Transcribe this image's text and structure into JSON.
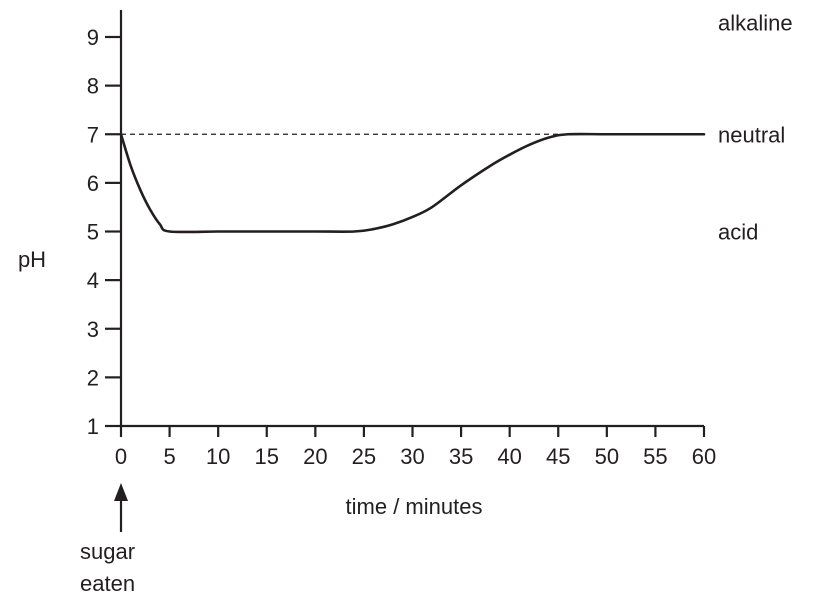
{
  "chart_data": {
    "type": "line",
    "title": "",
    "xlabel": "time / minutes",
    "ylabel": "pH",
    "xlim": [
      0,
      60
    ],
    "ylim": [
      1,
      9
    ],
    "x_ticks": [
      0,
      5,
      10,
      15,
      20,
      25,
      30,
      35,
      40,
      45,
      50,
      55,
      60
    ],
    "y_ticks": [
      1,
      2,
      3,
      4,
      5,
      6,
      7,
      8,
      9
    ],
    "grid": false,
    "series": [
      {
        "x": [
          0,
          1,
          2,
          3,
          4,
          5,
          10,
          15,
          20,
          24,
          26,
          28,
          30,
          32,
          35,
          38,
          40,
          42,
          44,
          46,
          50,
          55,
          60
        ],
        "y": [
          7,
          6.35,
          5.85,
          5.45,
          5.15,
          5.0,
          5.0,
          5.0,
          5.0,
          5.0,
          5.05,
          5.15,
          5.3,
          5.5,
          5.95,
          6.35,
          6.58,
          6.78,
          6.93,
          7.0,
          7.0,
          7.0,
          7.0
        ]
      }
    ],
    "reference_line": {
      "y": 7,
      "style": "dashed",
      "x_range": [
        0,
        46
      ]
    },
    "side_labels": [
      {
        "text": "alkaline",
        "y": 9.3
      },
      {
        "text": "neutral",
        "y": 7
      },
      {
        "text": "acid",
        "y": 5
      }
    ],
    "annotation": {
      "lines": [
        "sugar",
        "eaten"
      ],
      "x": 0,
      "style": "up-arrow"
    }
  }
}
